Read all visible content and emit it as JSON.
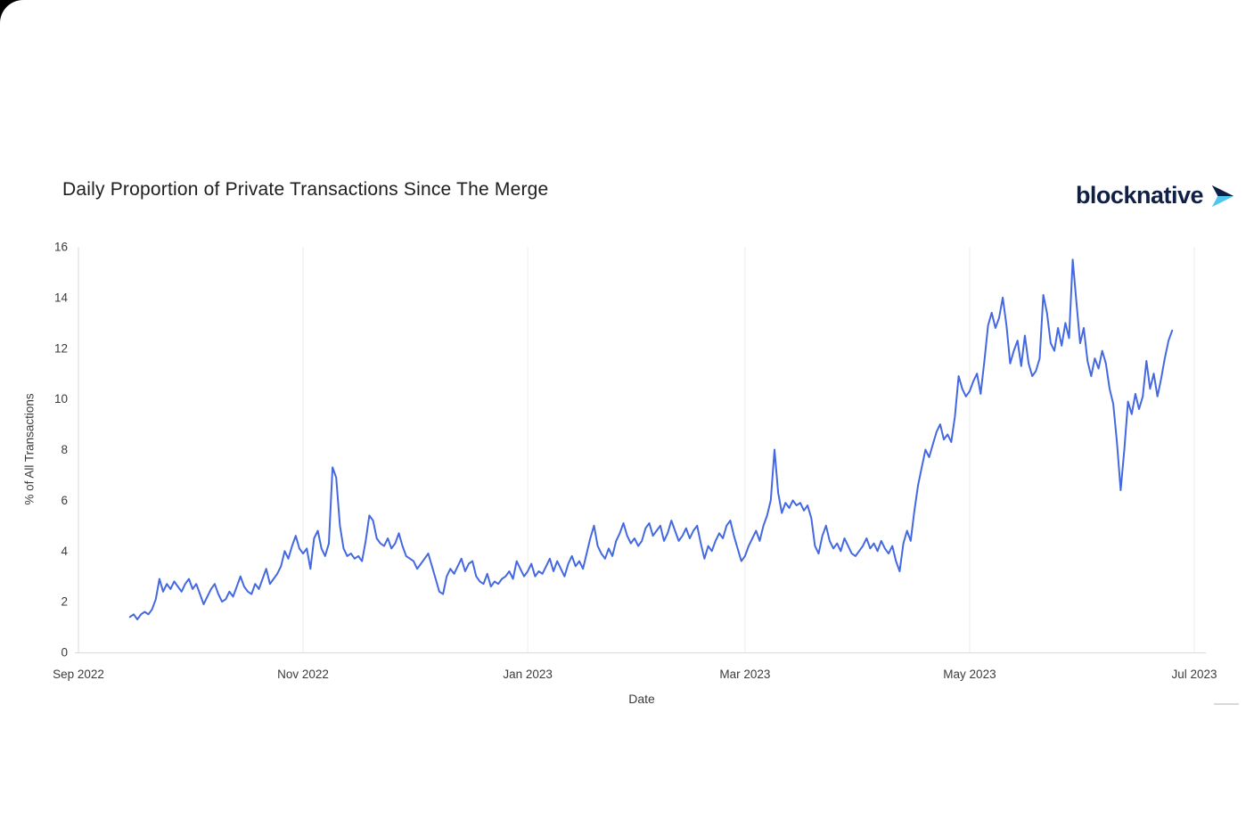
{
  "page": {
    "background": "#ffffff"
  },
  "header": {
    "brand": {
      "name": "blocknative",
      "logo_icon": "blocknative-dart-icon",
      "text_color": "#101f45",
      "accent_color": "#4fc6ef"
    }
  },
  "chart_data": {
    "type": "line",
    "title": "Daily Proportion of Private Transactions Since The Merge",
    "xlabel": "Date",
    "ylabel": "% of All Transactions",
    "legend": "none",
    "grid": {
      "vertical": true,
      "horizontal": false
    },
    "colors": {
      "line": "#4368e1",
      "grid": "#ececec",
      "axis": "#d9d9d9",
      "tick_text": "#3b3b3b"
    },
    "x_axis": {
      "start": "2022-09-01",
      "end": "2023-07-04",
      "ticks": [
        {
          "date": "2022-09-01",
          "label": "Sep 2022"
        },
        {
          "date": "2022-11-01",
          "label": "Nov 2022"
        },
        {
          "date": "2023-01-01",
          "label": "Jan 2023"
        },
        {
          "date": "2023-03-01",
          "label": "Mar 2023"
        },
        {
          "date": "2023-05-01",
          "label": "May 2023"
        },
        {
          "date": "2023-07-01",
          "label": "Jul 2023"
        }
      ]
    },
    "y_axis": {
      "min": 0,
      "max": 16,
      "ticks": [
        0,
        2,
        4,
        6,
        8,
        10,
        12,
        14,
        16
      ]
    },
    "series": [
      {
        "name": "% of All Transactions",
        "color": "#4368e1",
        "start_date": "2022-09-15",
        "cadence": "daily",
        "values": [
          1.4,
          1.5,
          1.3,
          1.5,
          1.6,
          1.5,
          1.7,
          2.1,
          2.9,
          2.4,
          2.7,
          2.5,
          2.8,
          2.6,
          2.4,
          2.7,
          2.9,
          2.5,
          2.7,
          2.3,
          1.9,
          2.2,
          2.5,
          2.7,
          2.3,
          2.0,
          2.1,
          2.4,
          2.2,
          2.6,
          3.0,
          2.6,
          2.4,
          2.3,
          2.7,
          2.5,
          2.9,
          3.3,
          2.7,
          2.9,
          3.1,
          3.4,
          4.0,
          3.7,
          4.2,
          4.6,
          4.1,
          3.9,
          4.1,
          3.3,
          4.5,
          4.8,
          4.1,
          3.8,
          4.3,
          7.3,
          6.9,
          5.0,
          4.1,
          3.8,
          3.9,
          3.7,
          3.8,
          3.6,
          4.4,
          5.4,
          5.2,
          4.5,
          4.3,
          4.2,
          4.5,
          4.1,
          4.3,
          4.7,
          4.2,
          3.8,
          3.7,
          3.6,
          3.3,
          3.5,
          3.7,
          3.9,
          3.4,
          2.9,
          2.4,
          2.3,
          3.0,
          3.3,
          3.1,
          3.4,
          3.7,
          3.2,
          3.5,
          3.6,
          3.0,
          2.8,
          2.7,
          3.1,
          2.6,
          2.8,
          2.7,
          2.9,
          3.0,
          3.2,
          2.9,
          3.6,
          3.3,
          3.0,
          3.2,
          3.5,
          3.0,
          3.2,
          3.1,
          3.4,
          3.7,
          3.2,
          3.6,
          3.3,
          3.0,
          3.5,
          3.8,
          3.4,
          3.6,
          3.3,
          3.9,
          4.5,
          5.0,
          4.2,
          3.9,
          3.7,
          4.1,
          3.8,
          4.4,
          4.7,
          5.1,
          4.6,
          4.3,
          4.5,
          4.2,
          4.4,
          4.9,
          5.1,
          4.6,
          4.8,
          5.0,
          4.4,
          4.7,
          5.2,
          4.8,
          4.4,
          4.6,
          4.9,
          4.5,
          4.8,
          5.0,
          4.3,
          3.7,
          4.2,
          4.0,
          4.4,
          4.7,
          4.5,
          5.0,
          5.2,
          4.6,
          4.1,
          3.6,
          3.8,
          4.2,
          4.5,
          4.8,
          4.4,
          5.0,
          5.4,
          6.0,
          8.0,
          6.3,
          5.5,
          5.9,
          5.7,
          6.0,
          5.8,
          5.9,
          5.6,
          5.8,
          5.3,
          4.2,
          3.9,
          4.6,
          5.0,
          4.4,
          4.1,
          4.3,
          4.0,
          4.5,
          4.2,
          3.9,
          3.8,
          4.0,
          4.2,
          4.5,
          4.1,
          4.3,
          4.0,
          4.4,
          4.1,
          3.9,
          4.2,
          3.6,
          3.2,
          4.3,
          4.8,
          4.4,
          5.6,
          6.6,
          7.3,
          8.0,
          7.7,
          8.2,
          8.7,
          9.0,
          8.4,
          8.6,
          8.3,
          9.3,
          10.9,
          10.4,
          10.1,
          10.3,
          10.7,
          11.0,
          10.2,
          11.5,
          12.9,
          13.4,
          12.8,
          13.2,
          14.0,
          12.9,
          11.4,
          11.9,
          12.3,
          11.3,
          12.5,
          11.4,
          10.9,
          11.1,
          11.6,
          14.1,
          13.4,
          12.2,
          11.9,
          12.8,
          12.1,
          13.0,
          12.4,
          15.5,
          13.8,
          12.2,
          12.8,
          11.5,
          10.9,
          11.6,
          11.2,
          11.9,
          11.4,
          10.4,
          9.8,
          8.3,
          6.4,
          8.0,
          9.9,
          9.4,
          10.2,
          9.6,
          10.1,
          11.5,
          10.4,
          11.0,
          10.1,
          10.8,
          11.6,
          12.3,
          12.7
        ]
      }
    ]
  }
}
